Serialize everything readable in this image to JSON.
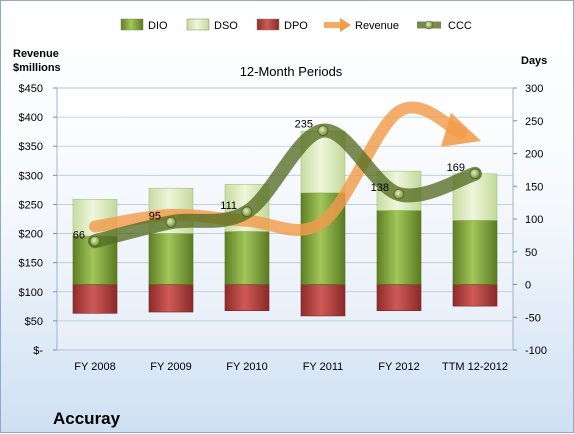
{
  "chart_data": {
    "type": "bar",
    "title": "12-Month Periods",
    "company": "Accuray",
    "left_axis": {
      "label_line1": "Revenue",
      "label_line2": "$millions",
      "ticks": [
        "$-",
        "$50",
        "$100",
        "$150",
        "$200",
        "$250",
        "$300",
        "$350",
        "$400",
        "$450"
      ],
      "range": [
        0,
        450
      ]
    },
    "right_axis": {
      "label": "Days",
      "ticks": [
        "-100",
        "-50",
        "0",
        "50",
        "100",
        "150",
        "200",
        "250",
        "300"
      ],
      "range": [
        -100,
        300
      ]
    },
    "categories": [
      "FY 2008",
      "FY 2009",
      "FY 2010",
      "FY 2011",
      "FY 2012",
      "TTM 12-2012"
    ],
    "legend": {
      "placement": "top",
      "items": [
        {
          "label": "DIO",
          "kind": "bar",
          "color": "#7fa33a"
        },
        {
          "label": "DSO",
          "kind": "bar",
          "color": "#d8e8b4"
        },
        {
          "label": "DPO",
          "kind": "bar",
          "color": "#b5413f"
        },
        {
          "label": "Revenue",
          "kind": "arrow",
          "color": "#f29b4a"
        },
        {
          "label": "CCC",
          "kind": "line",
          "color": "#5f7b2a"
        }
      ]
    },
    "series": [
      {
        "name": "DIO",
        "axis": "days",
        "values": [
          74,
          78,
          81,
          140,
          113,
          98
        ]
      },
      {
        "name": "DSO",
        "axis": "days",
        "values": [
          56,
          69,
          72,
          94,
          60,
          71
        ]
      },
      {
        "name": "DPO",
        "axis": "days",
        "values": [
          -44,
          -42,
          -40,
          -48,
          -40,
          -33
        ]
      },
      {
        "name": "Revenue",
        "axis": "revenue",
        "values": [
          212,
          232,
          222,
          220,
          410,
          390
        ]
      },
      {
        "name": "CCC",
        "axis": "days",
        "values": [
          66,
          95,
          111,
          235,
          138,
          169
        ]
      }
    ],
    "ccc_labels": [
      "66",
      "95",
      "111",
      "235",
      "138",
      "169"
    ]
  }
}
